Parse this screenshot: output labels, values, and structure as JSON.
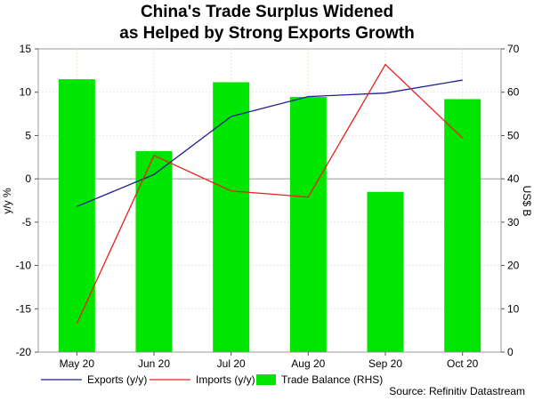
{
  "title_line1": "China's Trade Surplus Widened",
  "title_line2": "as Helped by Strong Exports Growth",
  "source": "Source: Refinitiv Datastream",
  "chart_data": {
    "type": "bar",
    "categories": [
      "May 20",
      "Jun 20",
      "Jul 20",
      "Aug 20",
      "Sep 20",
      "Oct 20"
    ],
    "ylabel": "y/y %",
    "y2label": "US$ B",
    "ylim": [
      -20,
      15
    ],
    "y2lim": [
      0,
      70
    ],
    "yticks": [
      -20,
      -15,
      -10,
      -5,
      0,
      5,
      10,
      15
    ],
    "y2ticks": [
      0,
      10,
      20,
      30,
      40,
      50,
      60,
      70
    ],
    "grid": true,
    "legend_position": "bottom",
    "series": [
      {
        "name": "Exports (y/y)",
        "kind": "line",
        "axis": "left",
        "color": "#1f1f8f",
        "values": [
          -3.2,
          0.5,
          7.2,
          9.5,
          9.9,
          11.4
        ]
      },
      {
        "name": "Imports (y/y)",
        "kind": "line",
        "axis": "left",
        "color": "#e8201d",
        "values": [
          -16.7,
          2.7,
          -1.4,
          -2.1,
          13.2,
          4.7
        ]
      },
      {
        "name": "Trade Balance (RHS)",
        "kind": "bar",
        "axis": "right",
        "color": "#00e600",
        "values": [
          63.0,
          46.4,
          62.3,
          58.9,
          37.0,
          58.4
        ]
      }
    ]
  }
}
